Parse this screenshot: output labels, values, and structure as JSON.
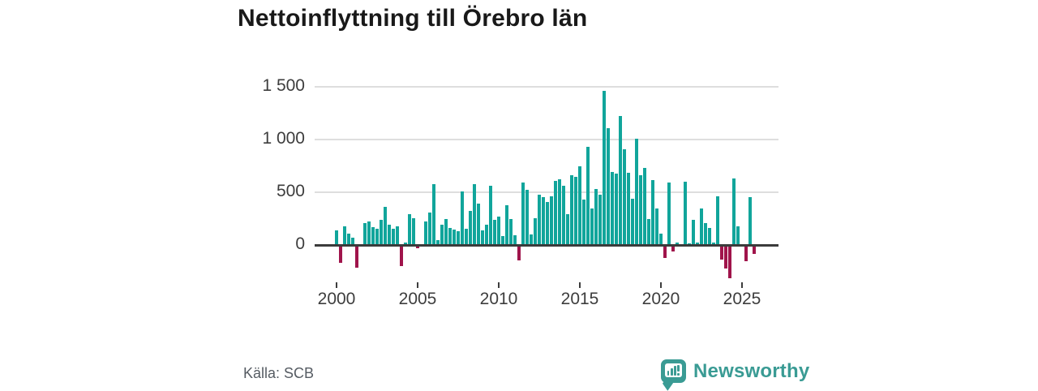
{
  "header": {
    "title": "Nettoinflyttning till Örebro län"
  },
  "footer": {
    "source": "Källa: SCB"
  },
  "brand": {
    "name": "Newsworthy",
    "color": "#3a9b94"
  },
  "chart_data": {
    "type": "bar",
    "title": "Nettoinflyttning till Örebro län",
    "frequency": "quarterly",
    "start_period": "2000-Q1",
    "end_period": "2025-Q4",
    "x_tick_labels": [
      "2000",
      "2005",
      "2010",
      "2015",
      "2020",
      "2025"
    ],
    "x_tick_years": [
      2000,
      2005,
      2010,
      2015,
      2020,
      2025
    ],
    "y_tick_labels": [
      "0",
      "500",
      "1 000",
      "1 500"
    ],
    "y_gridlines": [
      0,
      500,
      1000,
      1500
    ],
    "ylim": [
      -320,
      1500
    ],
    "grid": "horizontal",
    "legend": "none",
    "positive_color": "#11a59b",
    "negative_color": "#a0144b",
    "axis_color": "#3b3b3b",
    "values": [
      135,
      -155,
      175,
      105,
      70,
      -200,
      10,
      205,
      225,
      170,
      155,
      240,
      360,
      190,
      155,
      175,
      -190,
      20,
      295,
      255,
      -20,
      10,
      220,
      305,
      575,
      50,
      190,
      245,
      165,
      145,
      130,
      505,
      155,
      325,
      580,
      390,
      140,
      190,
      565,
      240,
      270,
      85,
      375,
      245,
      90,
      -135,
      595,
      520,
      100,
      255,
      475,
      455,
      405,
      460,
      605,
      620,
      565,
      295,
      660,
      645,
      745,
      430,
      930,
      345,
      530,
      480,
      1465,
      1105,
      690,
      680,
      1220,
      905,
      685,
      440,
      1010,
      665,
      730,
      245,
      615,
      345,
      105,
      -110,
      595,
      -50,
      20,
      0,
      600,
      15,
      235,
      20,
      350,
      205,
      160,
      20,
      465,
      -130,
      -215,
      -300,
      630,
      180,
      0,
      -140,
      455,
      -70
    ]
  }
}
